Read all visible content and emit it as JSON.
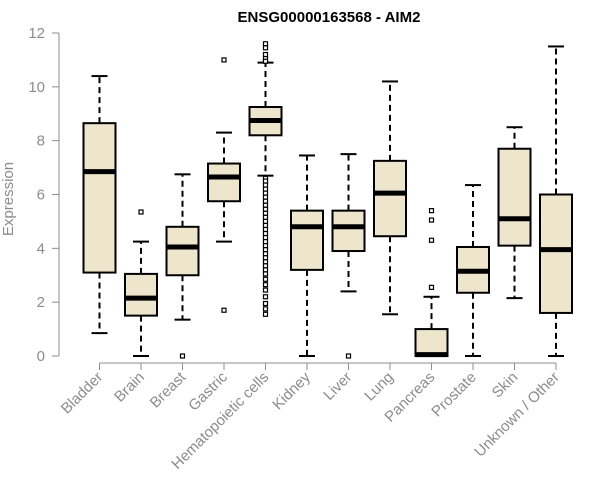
{
  "chart_data": {
    "type": "box",
    "title": "ENSG00000163568 - AIM2",
    "xlabel": "",
    "ylabel": "Expression",
    "ylim": [
      0,
      12
    ],
    "yticks": [
      0,
      2,
      4,
      6,
      8,
      10,
      12
    ],
    "box_fill": "#ede6cc",
    "categories": [
      "Bladder",
      "Brain",
      "Breast",
      "Gastric",
      "Hematopoietic cells",
      "Kidney",
      "Liver",
      "Lung",
      "Pancreas",
      "Prostate",
      "Skin",
      "Unknown / Other"
    ],
    "boxes": [
      {
        "category": "Bladder",
        "whisker_low": 0.85,
        "q1": 3.1,
        "median": 6.85,
        "q3": 8.65,
        "whisker_high": 10.4,
        "outliers": []
      },
      {
        "category": "Brain",
        "whisker_low": 0.0,
        "q1": 1.5,
        "median": 2.15,
        "q3": 3.05,
        "whisker_high": 4.25,
        "outliers": [
          5.35
        ]
      },
      {
        "category": "Breast",
        "whisker_low": 1.35,
        "q1": 3.0,
        "median": 4.05,
        "q3": 4.8,
        "whisker_high": 6.75,
        "outliers": [
          0.0
        ]
      },
      {
        "category": "Gastric",
        "whisker_low": 4.25,
        "q1": 5.75,
        "median": 6.65,
        "q3": 7.15,
        "whisker_high": 8.3,
        "outliers": [
          11.0,
          1.7
        ]
      },
      {
        "category": "Hematopoietic cells",
        "whisker_low": 6.7,
        "q1": 8.2,
        "median": 8.75,
        "q3": 9.25,
        "whisker_high": 10.9,
        "outliers": [
          11.6,
          11.45,
          11.2,
          11.05,
          10.95,
          6.6,
          6.5,
          6.35,
          6.2,
          6.05,
          5.9,
          5.75,
          5.6,
          5.45,
          5.3,
          5.15,
          5.0,
          4.85,
          4.7,
          4.55,
          4.4,
          4.25,
          4.1,
          3.95,
          3.8,
          3.65,
          3.5,
          3.35,
          3.2,
          3.05,
          2.85,
          2.65,
          2.45,
          2.2,
          1.95,
          1.75,
          1.55
        ]
      },
      {
        "category": "Kidney",
        "whisker_low": 0.0,
        "q1": 3.2,
        "median": 4.8,
        "q3": 5.4,
        "whisker_high": 7.45,
        "outliers": []
      },
      {
        "category": "Liver",
        "whisker_low": 2.4,
        "q1": 3.9,
        "median": 4.8,
        "q3": 5.4,
        "whisker_high": 7.5,
        "outliers": [
          0.0
        ]
      },
      {
        "category": "Lung",
        "whisker_low": 1.55,
        "q1": 4.45,
        "median": 6.05,
        "q3": 7.25,
        "whisker_high": 10.2,
        "outliers": []
      },
      {
        "category": "Pancreas",
        "whisker_low": 0.0,
        "q1": 0.0,
        "median": 0.05,
        "q3": 1.0,
        "whisker_high": 2.2,
        "outliers": [
          5.4,
          5.05,
          4.3,
          2.55
        ]
      },
      {
        "category": "Prostate",
        "whisker_low": 0.0,
        "q1": 2.35,
        "median": 3.15,
        "q3": 4.05,
        "whisker_high": 6.35,
        "outliers": []
      },
      {
        "category": "Skin",
        "whisker_low": 2.15,
        "q1": 4.1,
        "median": 5.1,
        "q3": 7.7,
        "whisker_high": 8.5,
        "outliers": []
      },
      {
        "category": "Unknown / Other",
        "whisker_low": 0.0,
        "q1": 1.6,
        "median": 3.95,
        "q3": 6.0,
        "whisker_high": 11.5,
        "outliers": []
      }
    ]
  }
}
